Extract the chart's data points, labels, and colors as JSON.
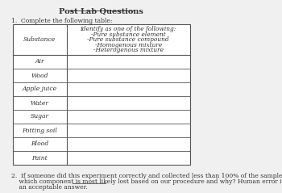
{
  "title": "Post Lab Questions",
  "question1_label": "1.  Complete the following table:",
  "col1_header": "Substance",
  "col2_header_lines": [
    "Identify as one of the following:",
    "-Pure substance element",
    "-Pure substance compound",
    "-Homogenous mixture",
    "-Heterogenous mixture"
  ],
  "substances": [
    "Air",
    "Wood",
    "Apple juice",
    "Water",
    "Sugar",
    "Potting soil",
    "Blood",
    "Paint"
  ],
  "q2_line1": "2.  If someone did this experiment correctly and collected less than 100% of the sample,",
  "q2_line2_pre": "    which component is most likely lost ",
  "q2_line2_underlined": "based on our procedure",
  "q2_line2_post": " and why? Human error is not",
  "q2_line3": "    an acceptable answer.",
  "bg_color": "#f0f0f0",
  "table_bg": "#ffffff",
  "border_color": "#555555",
  "text_color": "#333333",
  "font_size": 5.5,
  "title_font_size": 7.0
}
